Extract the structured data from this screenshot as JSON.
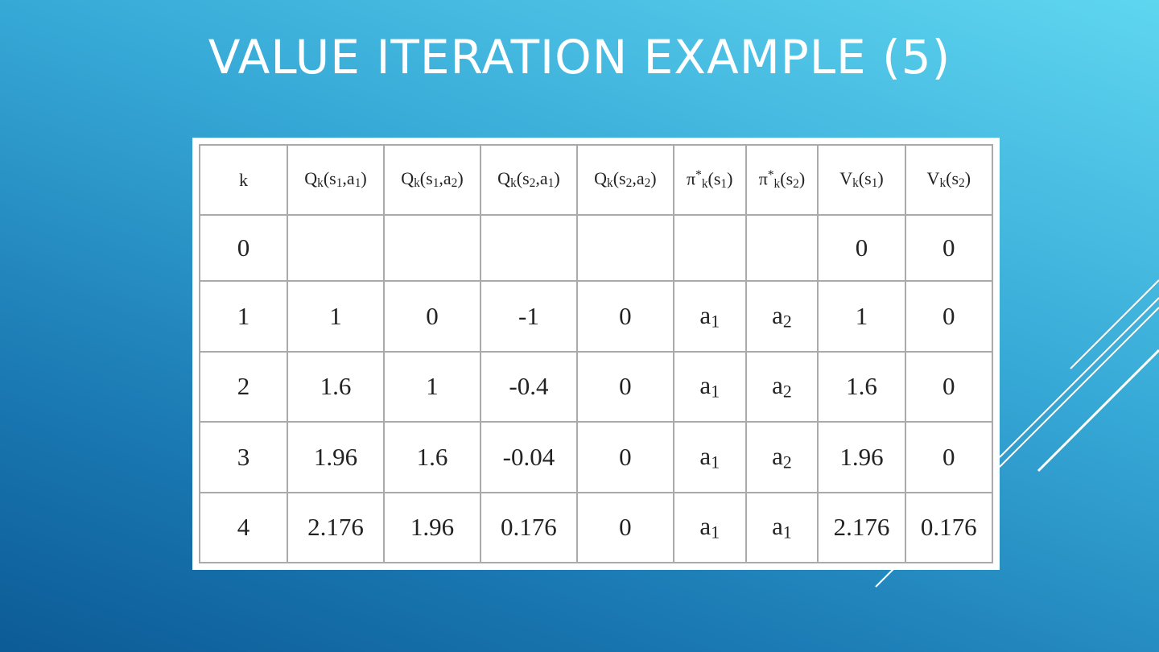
{
  "header": {
    "title": "VALUE ITERATION EXAMPLE (5)"
  },
  "table": {
    "columns": [
      [
        {
          "text": "k"
        }
      ],
      [
        {
          "text": "Q"
        },
        {
          "sub": "k"
        },
        {
          "text": "(s"
        },
        {
          "sub": "1"
        },
        {
          "text": ",a"
        },
        {
          "sub": "1"
        },
        {
          "text": ")"
        }
      ],
      [
        {
          "text": "Q"
        },
        {
          "sub": "k"
        },
        {
          "text": "(s"
        },
        {
          "sub": "1"
        },
        {
          "text": ",a"
        },
        {
          "sub": "2"
        },
        {
          "text": ")"
        }
      ],
      [
        {
          "text": "Q"
        },
        {
          "sub": "k"
        },
        {
          "text": "(s"
        },
        {
          "sub": "2"
        },
        {
          "text": ",a"
        },
        {
          "sub": "1"
        },
        {
          "text": ")"
        }
      ],
      [
        {
          "text": "Q"
        },
        {
          "sub": "k"
        },
        {
          "text": "(s"
        },
        {
          "sub": "2"
        },
        {
          "text": ",a"
        },
        {
          "sub": "2"
        },
        {
          "text": ")"
        }
      ],
      [
        {
          "text": "π"
        },
        {
          "sup": "*"
        },
        {
          "sub": "k"
        },
        {
          "text": "(s"
        },
        {
          "sub": "1"
        },
        {
          "text": ")"
        }
      ],
      [
        {
          "text": "π"
        },
        {
          "sup": "*"
        },
        {
          "sub": "k"
        },
        {
          "text": "(s"
        },
        {
          "sub": "2"
        },
        {
          "text": ")"
        }
      ],
      [
        {
          "text": "V"
        },
        {
          "sub": "k"
        },
        {
          "text": "(s"
        },
        {
          "sub": "1"
        },
        {
          "text": ")"
        }
      ],
      [
        {
          "text": "V"
        },
        {
          "sub": "k"
        },
        {
          "text": "(s"
        },
        {
          "sub": "2"
        },
        {
          "text": ")"
        }
      ]
    ],
    "rows": [
      [
        0,
        null,
        null,
        null,
        null,
        null,
        null,
        0,
        0
      ],
      [
        1,
        1,
        0,
        -1,
        0,
        [
          {
            "text": "a"
          },
          {
            "sub": "1"
          }
        ],
        [
          {
            "text": "a"
          },
          {
            "sub": "2"
          }
        ],
        1,
        0
      ],
      [
        2,
        1.6,
        1,
        -0.4,
        0,
        [
          {
            "text": "a"
          },
          {
            "sub": "1"
          }
        ],
        [
          {
            "text": "a"
          },
          {
            "sub": "2"
          }
        ],
        1.6,
        0
      ],
      [
        3,
        1.96,
        1.6,
        -0.04,
        0,
        [
          {
            "text": "a"
          },
          {
            "sub": "1"
          }
        ],
        [
          {
            "text": "a"
          },
          {
            "sub": "2"
          }
        ],
        1.96,
        0
      ],
      [
        4,
        2.176,
        1.96,
        0.176,
        0,
        [
          {
            "text": "a"
          },
          {
            "sub": "1"
          }
        ],
        [
          {
            "text": "a"
          },
          {
            "sub": "1"
          }
        ],
        2.176,
        0.176
      ]
    ]
  }
}
